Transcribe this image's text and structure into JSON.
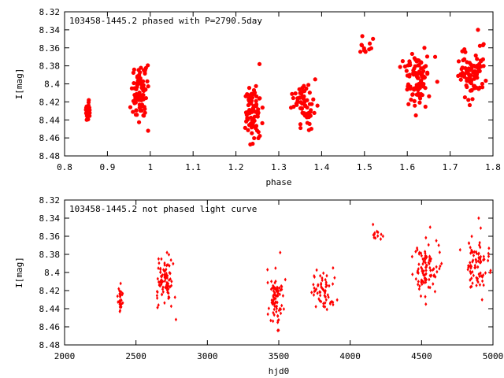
{
  "colors": {
    "points": "#ff0000",
    "axes": "#000000",
    "background": "#ffffff"
  },
  "chart_data": [
    {
      "type": "scatter",
      "title": "103458-1445.2 phased with P=2790.5day",
      "xlabel": "phase",
      "ylabel": "I[mag]",
      "xlim": [
        0.8,
        1.8
      ],
      "ylim": [
        8.48,
        8.32
      ],
      "y_inverted": true,
      "x_ticks": [
        "0.8",
        "0.9",
        "1",
        "1.1",
        "1.2",
        "1.3",
        "1.4",
        "1.5",
        "1.6",
        "1.7",
        "1.8"
      ],
      "y_ticks": [
        "8.32",
        "8.34",
        "8.36",
        "8.38",
        "8.4",
        "8.42",
        "8.44",
        "8.46",
        "8.48"
      ],
      "grid": false,
      "marker": "filled-circle",
      "series": [
        {
          "clusters": [
            {
              "x": 0.855,
              "y": 8.43,
              "count": 28,
              "dx": 0.008,
              "dy": 0.04
            },
            {
              "x": 0.975,
              "y": 8.41,
              "count": 85,
              "dx": 0.03,
              "dy": 0.085
            },
            {
              "x": 1.24,
              "y": 8.43,
              "count": 80,
              "dx": 0.03,
              "dy": 0.09
            },
            {
              "x": 1.36,
              "y": 8.425,
              "count": 60,
              "dx": 0.04,
              "dy": 0.065
            },
            {
              "x": 1.5,
              "y": 8.36,
              "count": 10,
              "dx": 0.018,
              "dy": 0.02
            },
            {
              "x": 1.625,
              "y": 8.395,
              "count": 90,
              "dx": 0.05,
              "dy": 0.085
            },
            {
              "x": 1.75,
              "y": 8.39,
              "count": 85,
              "dx": 0.045,
              "dy": 0.085
            }
          ],
          "points": [
            [
              0.995,
              8.452
            ],
            [
              1.255,
              8.378
            ],
            [
              1.385,
              8.395
            ],
            [
              1.495,
              8.347
            ],
            [
              1.52,
              8.35
            ],
            [
              1.605,
              8.375
            ],
            [
              1.64,
              8.36
            ],
            [
              1.665,
              8.37
            ],
            [
              1.72,
              8.375
            ],
            [
              1.765,
              8.34
            ],
            [
              1.775,
              8.4
            ],
            [
              1.62,
              8.435
            ]
          ]
        }
      ]
    },
    {
      "type": "scatter",
      "title": "103458-1445.2 not phased light curve",
      "xlabel": "hjd0",
      "ylabel": "I[mag]",
      "xlim": [
        2000,
        5000
      ],
      "ylim": [
        8.48,
        8.32
      ],
      "y_inverted": true,
      "x_ticks": [
        "2000",
        "2500",
        "3000",
        "3500",
        "4000",
        "4500",
        "5000"
      ],
      "y_ticks": [
        "8.32",
        "8.34",
        "8.36",
        "8.38",
        "8.4",
        "8.42",
        "8.44",
        "8.46",
        "8.48"
      ],
      "grid": false,
      "marker": "small-diamond",
      "series": [
        {
          "clusters": [
            {
              "x": 2390,
              "y": 8.43,
              "count": 28,
              "dx": 22,
              "dy": 0.04
            },
            {
              "x": 2700,
              "y": 8.41,
              "count": 85,
              "dx": 90,
              "dy": 0.085
            },
            {
              "x": 3480,
              "y": 8.43,
              "count": 80,
              "dx": 80,
              "dy": 0.09
            },
            {
              "x": 3810,
              "y": 8.425,
              "count": 60,
              "dx": 110,
              "dy": 0.065
            },
            {
              "x": 4190,
              "y": 8.36,
              "count": 10,
              "dx": 50,
              "dy": 0.02
            },
            {
              "x": 4540,
              "y": 8.395,
              "count": 90,
              "dx": 130,
              "dy": 0.085
            },
            {
              "x": 4880,
              "y": 8.39,
              "count": 85,
              "dx": 120,
              "dy": 0.085
            }
          ],
          "points": [
            [
              2780,
              8.452
            ],
            [
              3510,
              8.378
            ],
            [
              3880,
              8.395
            ],
            [
              4160,
              8.347
            ],
            [
              4230,
              8.36
            ],
            [
              4470,
              8.375
            ],
            [
              4560,
              8.35
            ],
            [
              4620,
              8.37
            ],
            [
              4770,
              8.375
            ],
            [
              4900,
              8.34
            ],
            [
              4980,
              8.4
            ],
            [
              4530,
              8.435
            ]
          ]
        }
      ]
    }
  ]
}
